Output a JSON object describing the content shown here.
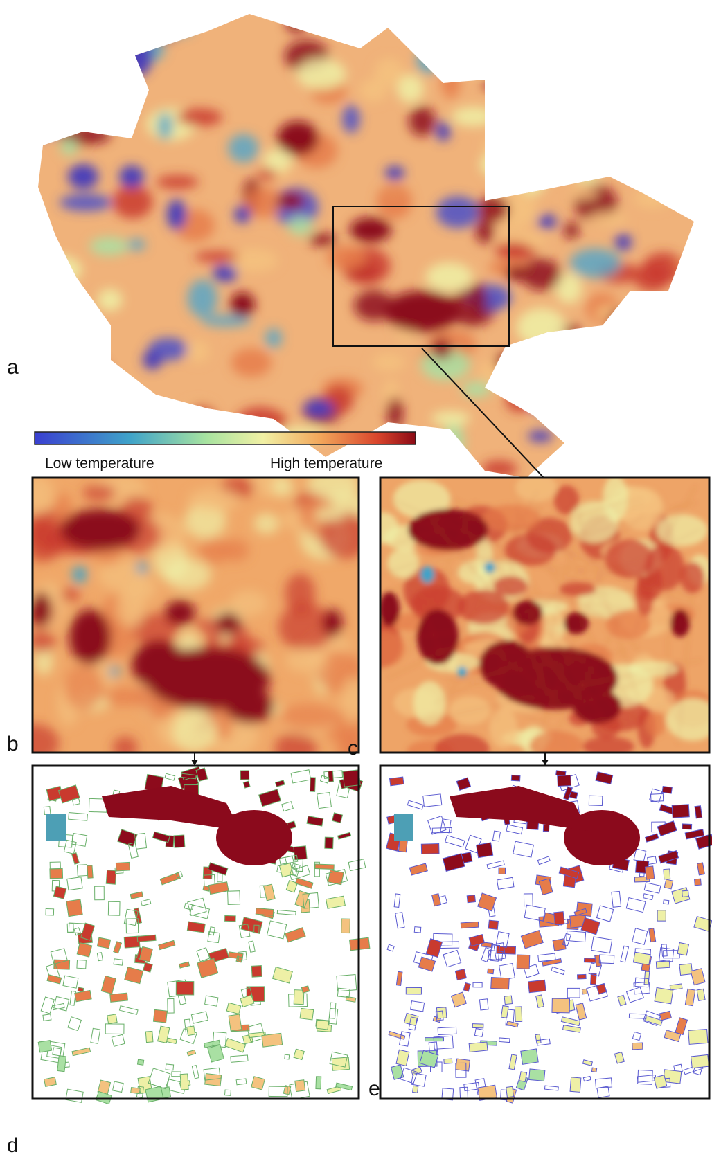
{
  "panel_labels": [
    "a",
    "b",
    "c",
    "d",
    "e"
  ],
  "colorbar": {
    "low": "Low temperature",
    "high": "High temperature"
  }
}
